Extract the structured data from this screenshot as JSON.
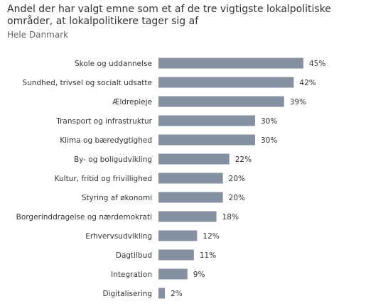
{
  "header": {
    "title": "Andel der har valgt emne som et af de tre vigtigste lokalpolitiske områder, at lokalpolitikere tager sig af",
    "subtitle": "Hele Danmark"
  },
  "colors": {
    "bar": "#8590a0",
    "text": "#333333"
  },
  "chart_data": {
    "type": "bar",
    "orientation": "horizontal",
    "title": "Andel der har valgt emne som et af de tre vigtigste lokalpolitiske områder, at lokalpolitikere tager sig af",
    "subtitle": "Hele Danmark",
    "categories": [
      "Skole og uddannelse",
      "Sundhed, trivsel og socialt udsatte",
      "Ældrepleje",
      "Transport og infrastruktur",
      "Klima og bæredygtighed",
      "By- og boligudvikling",
      "Kultur, fritid og frivillighed",
      "Styring af økonomi",
      "Borgerinddragelse og nærdemokrati",
      "Erhvervsudvikling",
      "Dagtilbud",
      "Integration",
      "Digitalisering"
    ],
    "values": [
      45,
      42,
      39,
      30,
      30,
      22,
      20,
      20,
      18,
      12,
      11,
      9,
      2
    ],
    "value_labels": [
      "45%",
      "42%",
      "39%",
      "30%",
      "30%",
      "22%",
      "20%",
      "20%",
      "18%",
      "12%",
      "11%",
      "9%",
      "2%"
    ],
    "unit": "%",
    "xlim": [
      0,
      45
    ],
    "grid": false,
    "legend": "none"
  }
}
